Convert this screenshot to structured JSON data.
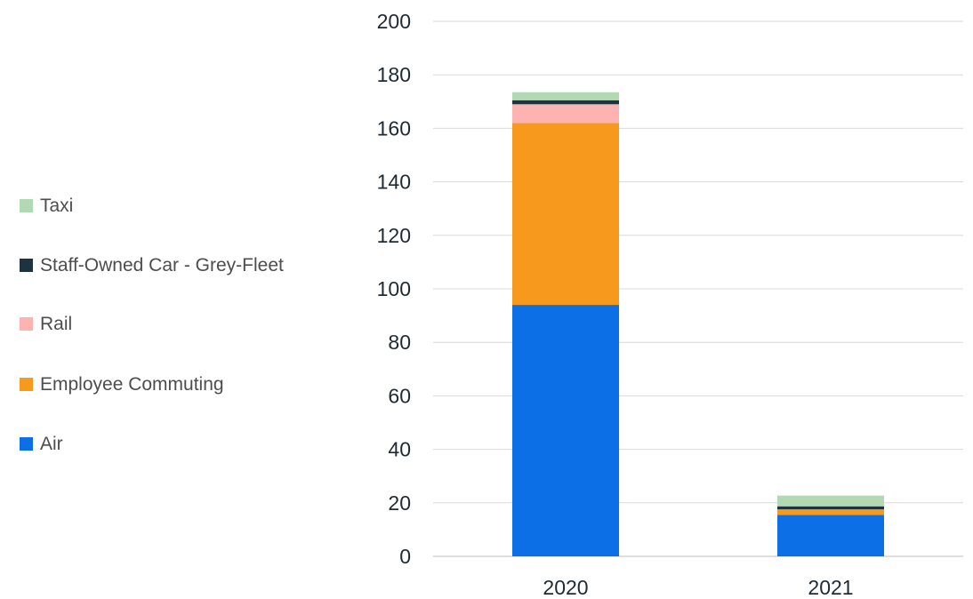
{
  "chart_data": {
    "type": "bar",
    "stacked": true,
    "categories": [
      "2020",
      "2021"
    ],
    "series": [
      {
        "name": "Air",
        "values": [
          94,
          15.5
        ],
        "color": "#0d6fe5"
      },
      {
        "name": "Employee Commuting",
        "values": [
          68,
          1.8
        ],
        "color": "#f7991d"
      },
      {
        "name": "Rail",
        "values": [
          7,
          0.2
        ],
        "color": "#fcb3b1"
      },
      {
        "name": "Staff-Owned Car - Grey-Fleet",
        "values": [
          1.5,
          1.2
        ],
        "color": "#1e3340"
      },
      {
        "name": "Taxi",
        "values": [
          3,
          4
        ],
        "color": "#b2d8b4"
      }
    ],
    "ylim": [
      0,
      200
    ],
    "yticks": [
      0,
      20,
      40,
      60,
      80,
      100,
      120,
      140,
      160,
      180,
      200
    ],
    "grid": true,
    "legend_position": "left",
    "legend_order": [
      "Taxi",
      "Staff-Owned Car - Grey-Fleet",
      "Rail",
      "Employee Commuting",
      "Air"
    ],
    "xlabel": "",
    "ylabel": "",
    "title": ""
  }
}
